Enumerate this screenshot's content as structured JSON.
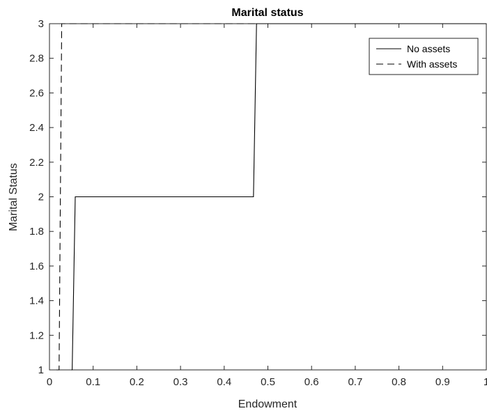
{
  "chart_data": {
    "type": "line",
    "title": "Marital status",
    "xlabel": "Endowment",
    "ylabel": "Marital Status",
    "xlim": [
      0,
      1
    ],
    "ylim": [
      1,
      3
    ],
    "x_ticks": [
      0,
      0.1,
      0.2,
      0.3,
      0.4,
      0.5,
      0.6,
      0.7,
      0.8,
      0.9,
      1
    ],
    "x_tick_labels": [
      "0",
      "0.1",
      "0.2",
      "0.3",
      "0.4",
      "0.5",
      "0.6",
      "0.7",
      "0.8",
      "0.9",
      "1"
    ],
    "y_ticks": [
      1,
      1.2,
      1.4,
      1.6,
      1.8,
      2,
      2.2,
      2.4,
      2.6,
      2.8,
      3
    ],
    "y_tick_labels": [
      "1",
      "1.2",
      "1.4",
      "1.6",
      "1.8",
      "2",
      "2.2",
      "2.4",
      "2.6",
      "2.8",
      "3"
    ],
    "grid": false,
    "legend_position": "top-right",
    "series": [
      {
        "name": "No assets",
        "style": "solid",
        "color": "#000000",
        "x": [
          0.05,
          0.052,
          0.059,
          0.46,
          0.467,
          0.474,
          1.0
        ],
        "y": [
          1,
          1,
          2,
          2,
          2,
          3,
          3
        ]
      },
      {
        "name": "With assets",
        "style": "dashed",
        "color": "#000000",
        "x": [
          0.016,
          0.022,
          0.028,
          1.0
        ],
        "y": [
          1,
          1,
          3,
          3
        ]
      }
    ]
  }
}
